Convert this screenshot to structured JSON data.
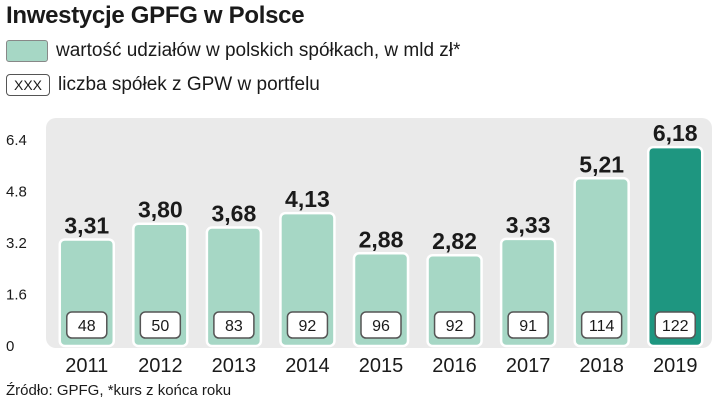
{
  "title": "Inwestycje GPFG w Polsce",
  "legend": {
    "value_label": "wartość udziałów w polskich spółkach, w mld zł*",
    "count_swatch_text": "XXX",
    "count_label": "liczba spółek z GPW w portfelu"
  },
  "source": "Źródło: GPFG, *kurs z końca roku",
  "colors": {
    "bar": "#a6d7c5",
    "highlight_bar": "#1e9680",
    "plot_bg": "#eaeaea"
  },
  "chart_data": {
    "type": "bar",
    "categories": [
      "2011",
      "2012",
      "2013",
      "2014",
      "2015",
      "2016",
      "2017",
      "2018",
      "2019"
    ],
    "series": [
      {
        "name": "wartość udziałów w polskich spółkach, w mld zł*",
        "values": [
          3.31,
          3.8,
          3.68,
          4.13,
          2.88,
          2.82,
          3.33,
          5.21,
          6.18
        ],
        "labels": [
          "3,31",
          "3,80",
          "3,68",
          "4,13",
          "2,88",
          "2,82",
          "3,33",
          "5,21",
          "6,18"
        ]
      },
      {
        "name": "liczba spółek z GPW w portfelu",
        "values": [
          48,
          50,
          83,
          92,
          96,
          92,
          91,
          114,
          122
        ]
      }
    ],
    "yticks": [
      "0",
      "1.6",
      "3.2",
      "4.8",
      "6.4"
    ],
    "ytick_values": [
      0,
      1.6,
      3.2,
      4.8,
      6.4
    ],
    "ylim": [
      0,
      6.4
    ],
    "highlight_index": 8,
    "grid": false
  }
}
